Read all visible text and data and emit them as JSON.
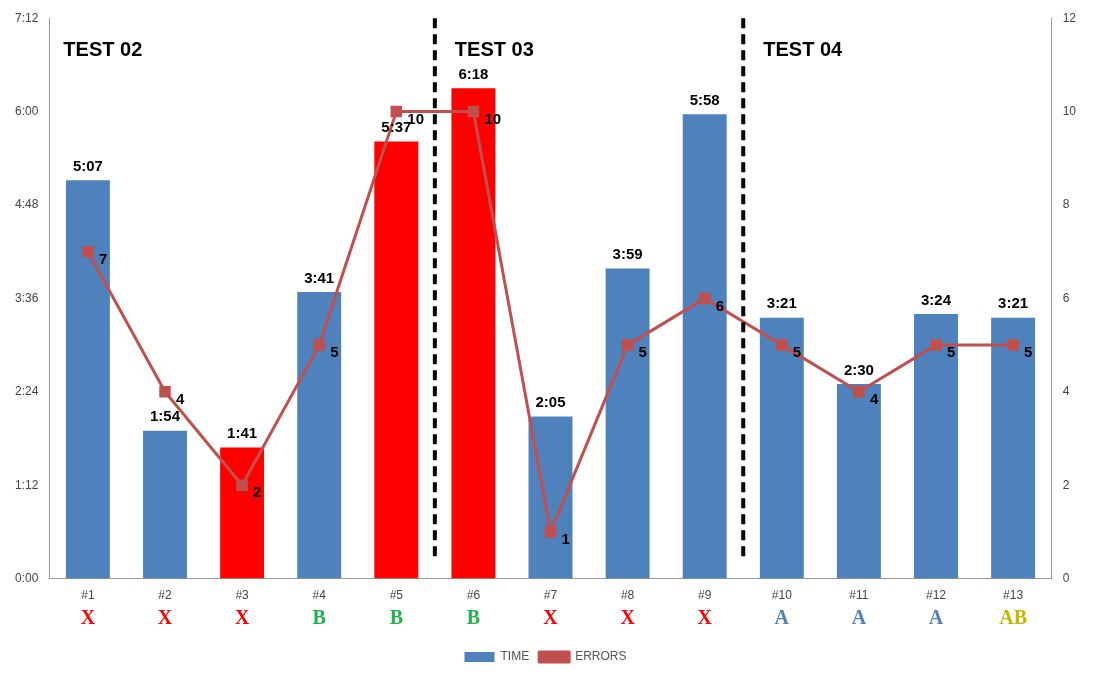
{
  "chart_data": {
    "type": "bar",
    "categories": [
      "#1",
      "#2",
      "#3",
      "#4",
      "#5",
      "#6",
      "#7",
      "#8",
      "#9",
      "#10",
      "#11",
      "#12",
      "#13"
    ],
    "series": [
      {
        "name": "TIME",
        "colors": [
          "#4f81bd",
          "#4f81bd",
          "#ff0000",
          "#4f81bd",
          "#ff0000",
          "#ff0000",
          "#4f81bd",
          "#4f81bd",
          "#4f81bd",
          "#4f81bd",
          "#4f81bd",
          "#4f81bd",
          "#4f81bd"
        ],
        "values": [
          307,
          114,
          101,
          221,
          337,
          378,
          125,
          239,
          358,
          201,
          150,
          204,
          201
        ],
        "value_labels": [
          "5:07",
          "1:54",
          "1:41",
          "3:41",
          "5:37",
          "6:18",
          "2:05",
          "3:59",
          "5:58",
          "3:21",
          "2:30",
          "3:24",
          "3:21"
        ]
      },
      {
        "name": "ERRORS",
        "type": "line",
        "axis": "y2",
        "color": "#c0504d",
        "marker": "square",
        "values": [
          7,
          4,
          2,
          5,
          10,
          10,
          1,
          5,
          6,
          5,
          4,
          5,
          5
        ],
        "data_labels": true
      }
    ],
    "ylim": [
      0,
      432
    ],
    "yticks": [
      {
        "value": 0,
        "label": "0:00"
      },
      {
        "value": 72,
        "label": "1:12"
      },
      {
        "value": 144,
        "label": "2:24"
      },
      {
        "value": 216,
        "label": "3:36"
      },
      {
        "value": 288,
        "label": "4:48"
      },
      {
        "value": 360,
        "label": "6:00"
      },
      {
        "value": 432,
        "label": "7:12"
      }
    ],
    "y2lim": [
      0,
      12
    ],
    "y2ticks": [
      0,
      2,
      4,
      6,
      8,
      10,
      12
    ],
    "annotations": [
      "TEST 02",
      "TEST 03",
      "TEST 04",
      "X",
      "X",
      "X",
      "B",
      "B",
      "B",
      "X",
      "X",
      "X",
      "A",
      "A",
      "A",
      "AB"
    ],
    "legend": "bottom",
    "grid": false
  }
}
